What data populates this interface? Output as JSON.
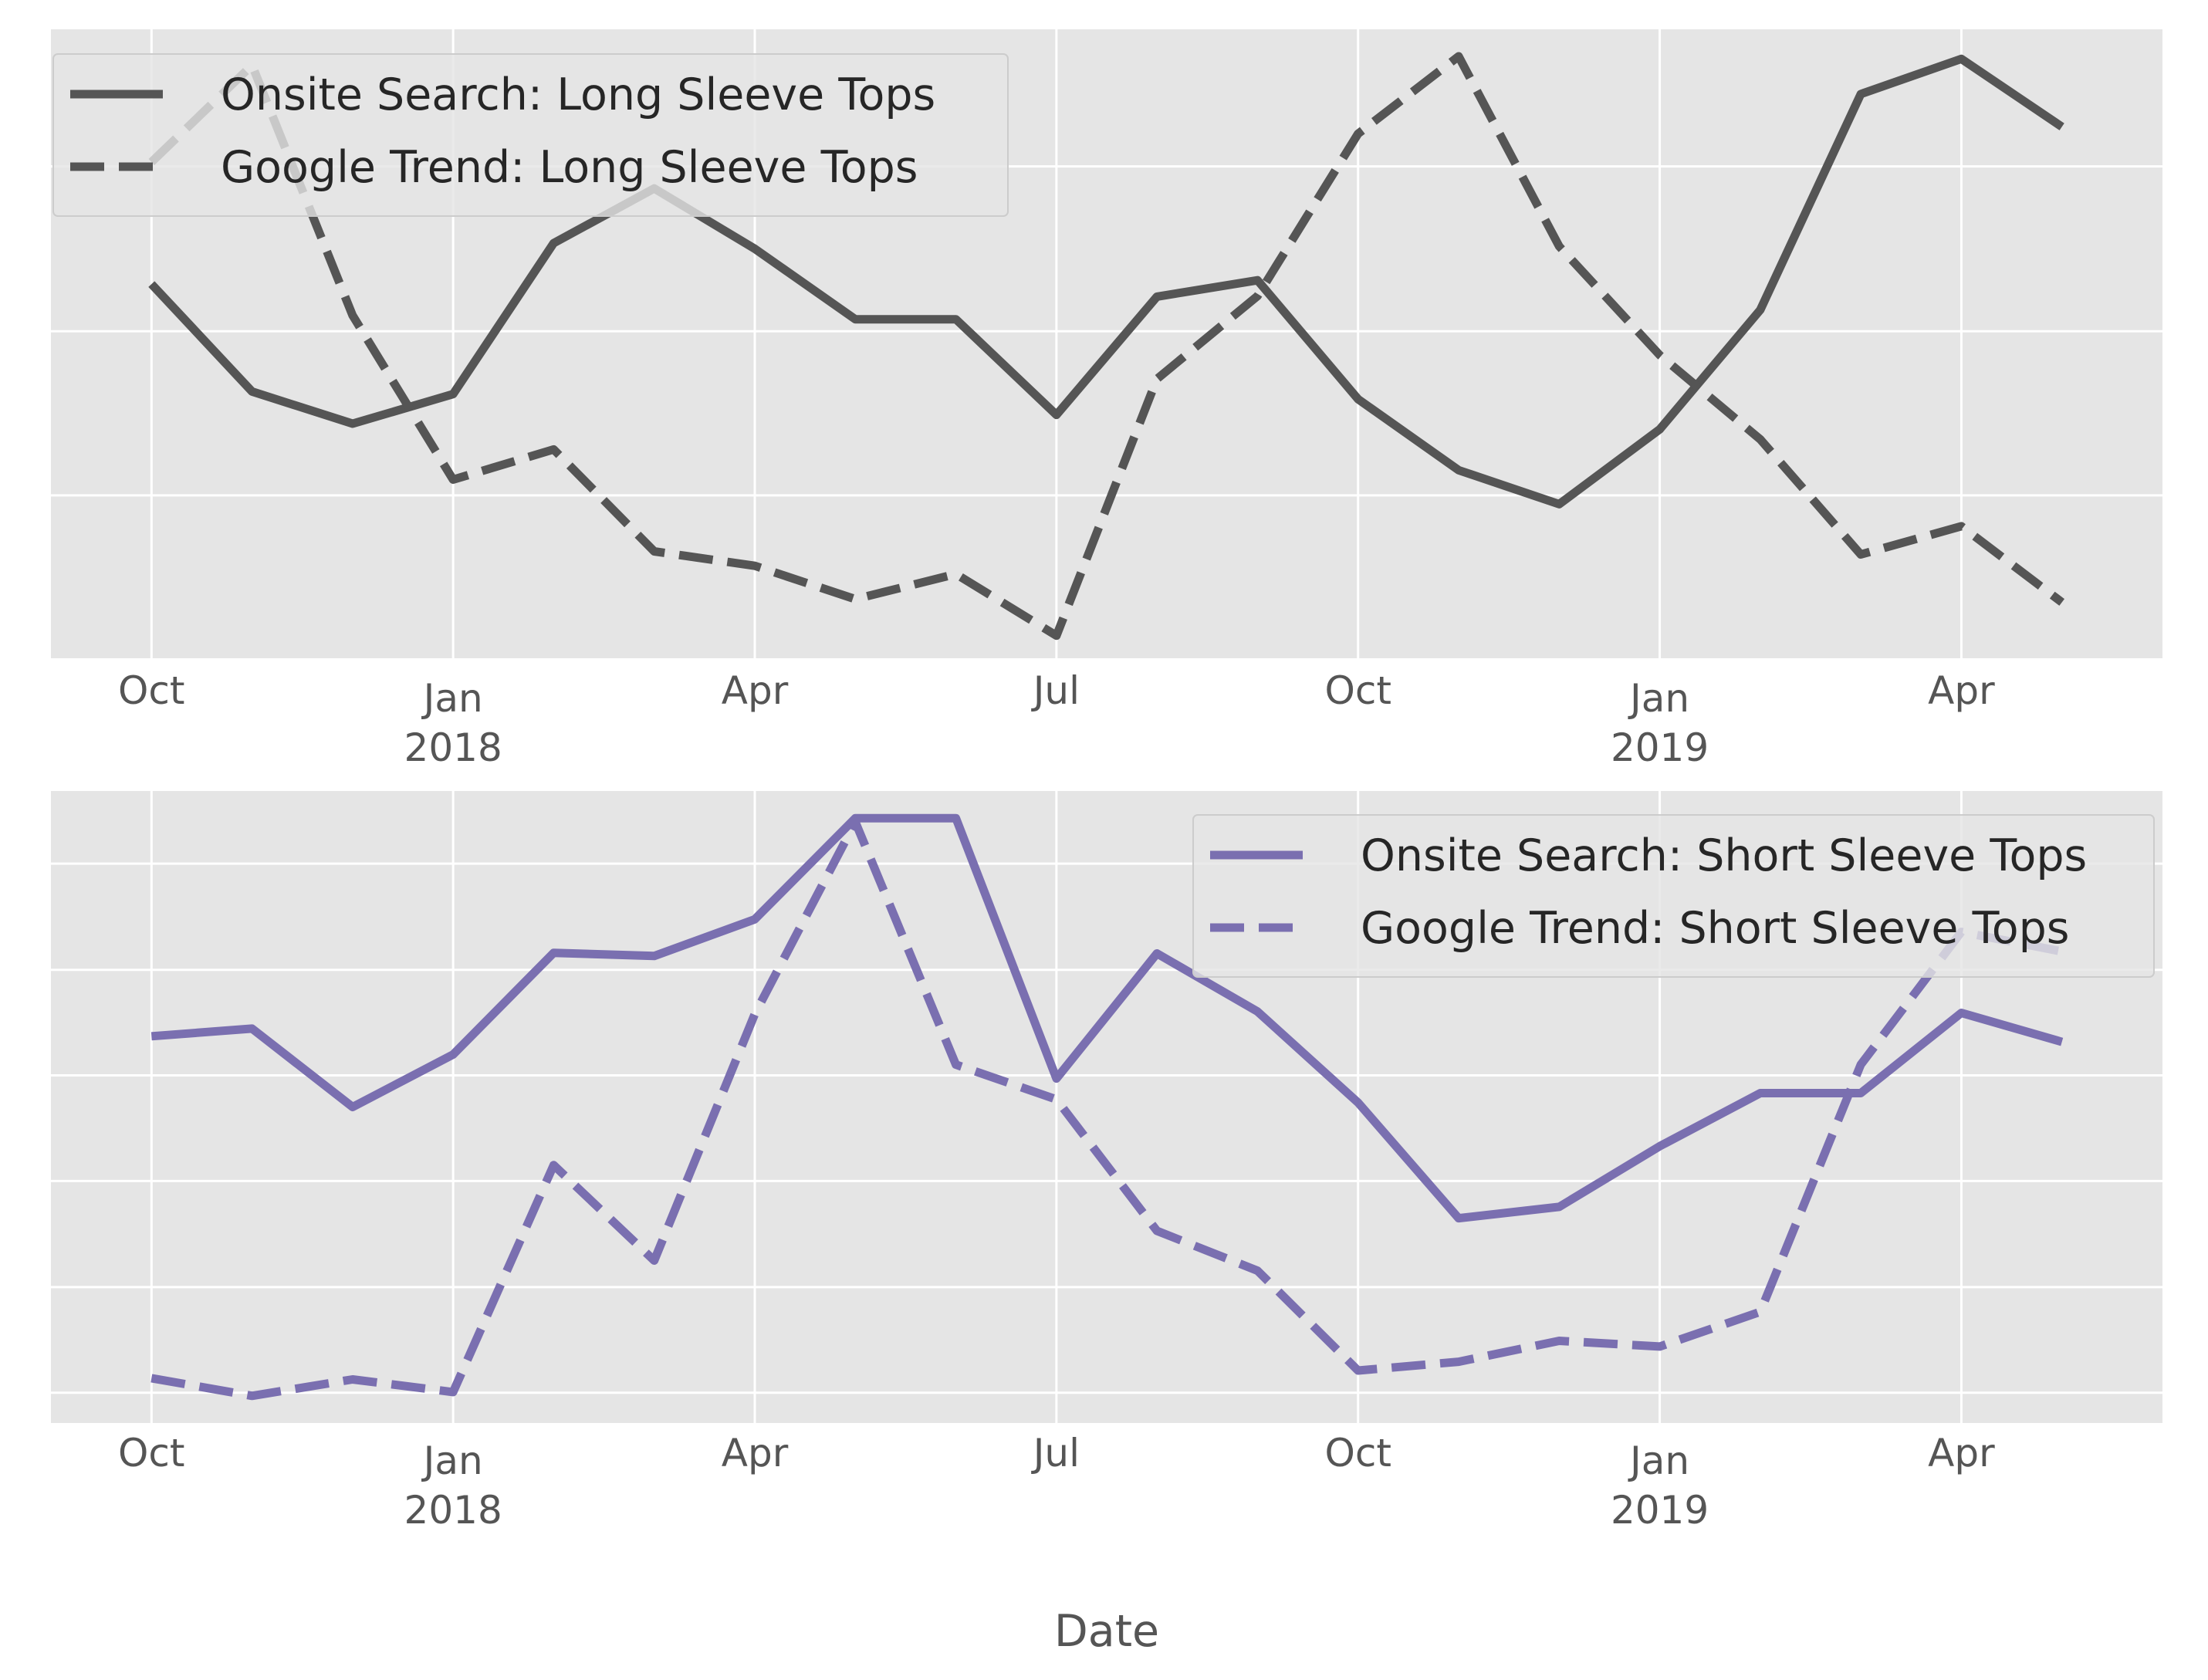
{
  "chart_data": [
    {
      "type": "line",
      "title": "",
      "xlabel": "",
      "ylabel": "",
      "x_ticks": [
        {
          "date": "2017-10",
          "label": "Oct",
          "sublabel": ""
        },
        {
          "date": "2018-01",
          "label": "Jan",
          "sublabel": "2018"
        },
        {
          "date": "2018-04",
          "label": "Apr",
          "sublabel": ""
        },
        {
          "date": "2018-07",
          "label": "Jul",
          "sublabel": ""
        },
        {
          "date": "2018-10",
          "label": "Oct",
          "sublabel": ""
        },
        {
          "date": "2019-01",
          "label": "Jan",
          "sublabel": "2019"
        },
        {
          "date": "2019-04",
          "label": "Apr",
          "sublabel": ""
        }
      ],
      "x": [
        "2017-10",
        "2017-11",
        "2017-12",
        "2018-01",
        "2018-02",
        "2018-03",
        "2018-04",
        "2018-05",
        "2018-06",
        "2018-07",
        "2018-08",
        "2018-09",
        "2018-10",
        "2018-11",
        "2018-12",
        "2019-01",
        "2019-02",
        "2019-03",
        "2019-04",
        "2019-05"
      ],
      "xlim": [
        "2017-09",
        "2019-06"
      ],
      "ylim": [
        0,
        1
      ],
      "y_gridlines": [
        0.259,
        0.52,
        0.782
      ],
      "y_tick_labels_shown": false,
      "grid": true,
      "legend_location": "upper left",
      "series": [
        {
          "name": "Onsite Search: Long Sleeve Tops",
          "style": "solid",
          "color": "#555555",
          "values": [
            0.595,
            0.424,
            0.373,
            0.42,
            0.66,
            0.747,
            0.651,
            0.539,
            0.539,
            0.387,
            0.575,
            0.601,
            0.412,
            0.299,
            0.245,
            0.364,
            0.554,
            0.897,
            0.953,
            0.845
          ]
        },
        {
          "name": "Google Trend: Long Sleeve Tops",
          "style": "dashed",
          "color": "#555555",
          "values": [
            0.789,
            0.943,
            0.545,
            0.284,
            0.332,
            0.17,
            0.147,
            0.094,
            0.134,
            0.036,
            0.444,
            0.576,
            0.834,
            0.957,
            0.655,
            0.482,
            0.348,
            0.165,
            0.21,
            0.089
          ]
        }
      ]
    },
    {
      "type": "line",
      "title": "",
      "xlabel": "Date",
      "ylabel": "",
      "x_ticks": [
        {
          "date": "2017-10",
          "label": "Oct",
          "sublabel": ""
        },
        {
          "date": "2018-01",
          "label": "Jan",
          "sublabel": "2018"
        },
        {
          "date": "2018-04",
          "label": "Apr",
          "sublabel": ""
        },
        {
          "date": "2018-07",
          "label": "Jul",
          "sublabel": ""
        },
        {
          "date": "2018-10",
          "label": "Oct",
          "sublabel": ""
        },
        {
          "date": "2019-01",
          "label": "Jan",
          "sublabel": "2019"
        },
        {
          "date": "2019-04",
          "label": "Apr",
          "sublabel": ""
        }
      ],
      "x": [
        "2017-10",
        "2017-11",
        "2017-12",
        "2018-01",
        "2018-02",
        "2018-03",
        "2018-04",
        "2018-05",
        "2018-06",
        "2018-07",
        "2018-08",
        "2018-09",
        "2018-10",
        "2018-11",
        "2018-12",
        "2019-01",
        "2019-02",
        "2019-03",
        "2019-04",
        "2019-05"
      ],
      "xlim": [
        "2017-09",
        "2019-06"
      ],
      "ylim": [
        0,
        1
      ],
      "y_gridlines": [
        0.048,
        0.215,
        0.383,
        0.55,
        0.717,
        0.885
      ],
      "y_tick_labels_shown": false,
      "grid": true,
      "legend_location": "upper right",
      "series": [
        {
          "name": "Onsite Search: Short Sleeve Tops",
          "style": "solid",
          "color": "#7a6fb0",
          "values": [
            0.612,
            0.624,
            0.5,
            0.583,
            0.744,
            0.739,
            0.797,
            0.957,
            0.957,
            0.545,
            0.743,
            0.651,
            0.507,
            0.324,
            0.342,
            0.438,
            0.522,
            0.522,
            0.649,
            0.603
          ]
        },
        {
          "name": "Google Trend: Short Sleeve Tops",
          "style": "dashed",
          "color": "#7a6fb0",
          "values": [
            0.071,
            0.043,
            0.069,
            0.049,
            0.408,
            0.257,
            0.647,
            0.951,
            0.567,
            0.512,
            0.304,
            0.241,
            0.083,
            0.097,
            0.13,
            0.121,
            0.176,
            0.567,
            0.777,
            0.746
          ]
        }
      ]
    }
  ]
}
